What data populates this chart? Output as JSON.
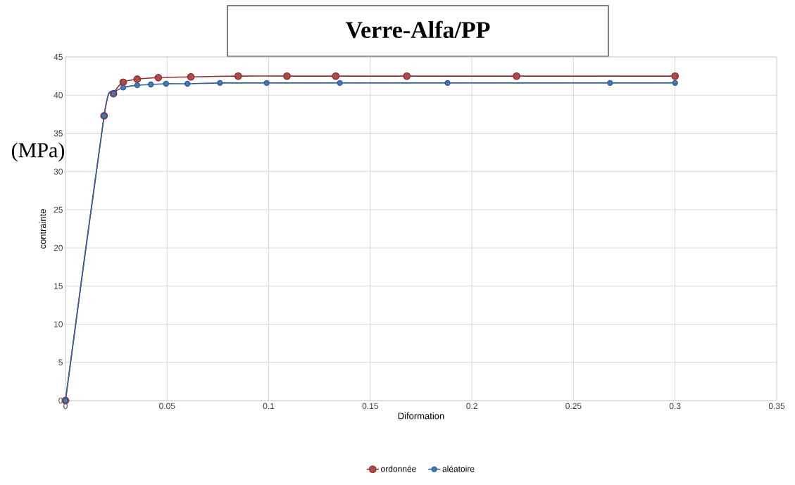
{
  "chart_data": {
    "type": "line",
    "title": "Verre-Alfa/PP",
    "xlabel": "Diformation",
    "ylabel": "contrainte",
    "annotations": [
      "(MPa)"
    ],
    "xlim": [
      0,
      0.35
    ],
    "xticks": [
      0,
      0.05,
      0.1,
      0.15,
      0.2,
      0.25,
      0.3,
      0.35
    ],
    "ylim": [
      0,
      45
    ],
    "yticks": [
      0,
      5,
      10,
      15,
      20,
      25,
      30,
      35,
      40,
      45
    ],
    "grid": true,
    "legend": "bottom",
    "marker": "circle",
    "line_style": "solid",
    "series": [
      {
        "name": "ordonnée",
        "color": "#9b2d2d",
        "x": [
          0,
          0.019,
          0.0236,
          0.0284,
          0.0353,
          0.0457,
          0.0617,
          0.085,
          0.109,
          0.133,
          0.168,
          0.222,
          0.3
        ],
        "values": [
          0,
          37.3,
          40.2,
          41.7,
          42.1,
          42.3,
          42.4,
          42.5,
          42.5,
          42.5,
          42.5,
          42.5,
          42.5
        ]
      },
      {
        "name": "aléatoire",
        "color": "#2e5f9e",
        "x": [
          0,
          0.019,
          0.0236,
          0.0284,
          0.0353,
          0.042,
          0.0495,
          0.06,
          0.076,
          0.099,
          0.135,
          0.188,
          0.268,
          0.3
        ],
        "values": [
          0,
          37.3,
          40.2,
          41.0,
          41.3,
          41.4,
          41.5,
          41.5,
          41.6,
          41.6,
          41.6,
          41.6,
          41.6,
          41.6
        ]
      }
    ]
  }
}
